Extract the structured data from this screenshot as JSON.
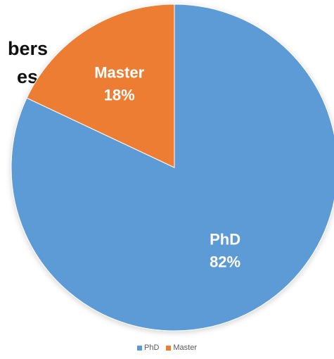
{
  "background_text": [
    "bers",
    "es"
  ],
  "chart_data": {
    "type": "pie",
    "title": "",
    "slices": [
      {
        "label": "PhD",
        "value": 82,
        "display": "82%",
        "color": "#5b9bd5"
      },
      {
        "label": "Master",
        "value": 18,
        "display": "18%",
        "color": "#ed7d31"
      }
    ],
    "start": "12 o'clock",
    "direction": "clockwise",
    "legend_position": "bottom"
  }
}
